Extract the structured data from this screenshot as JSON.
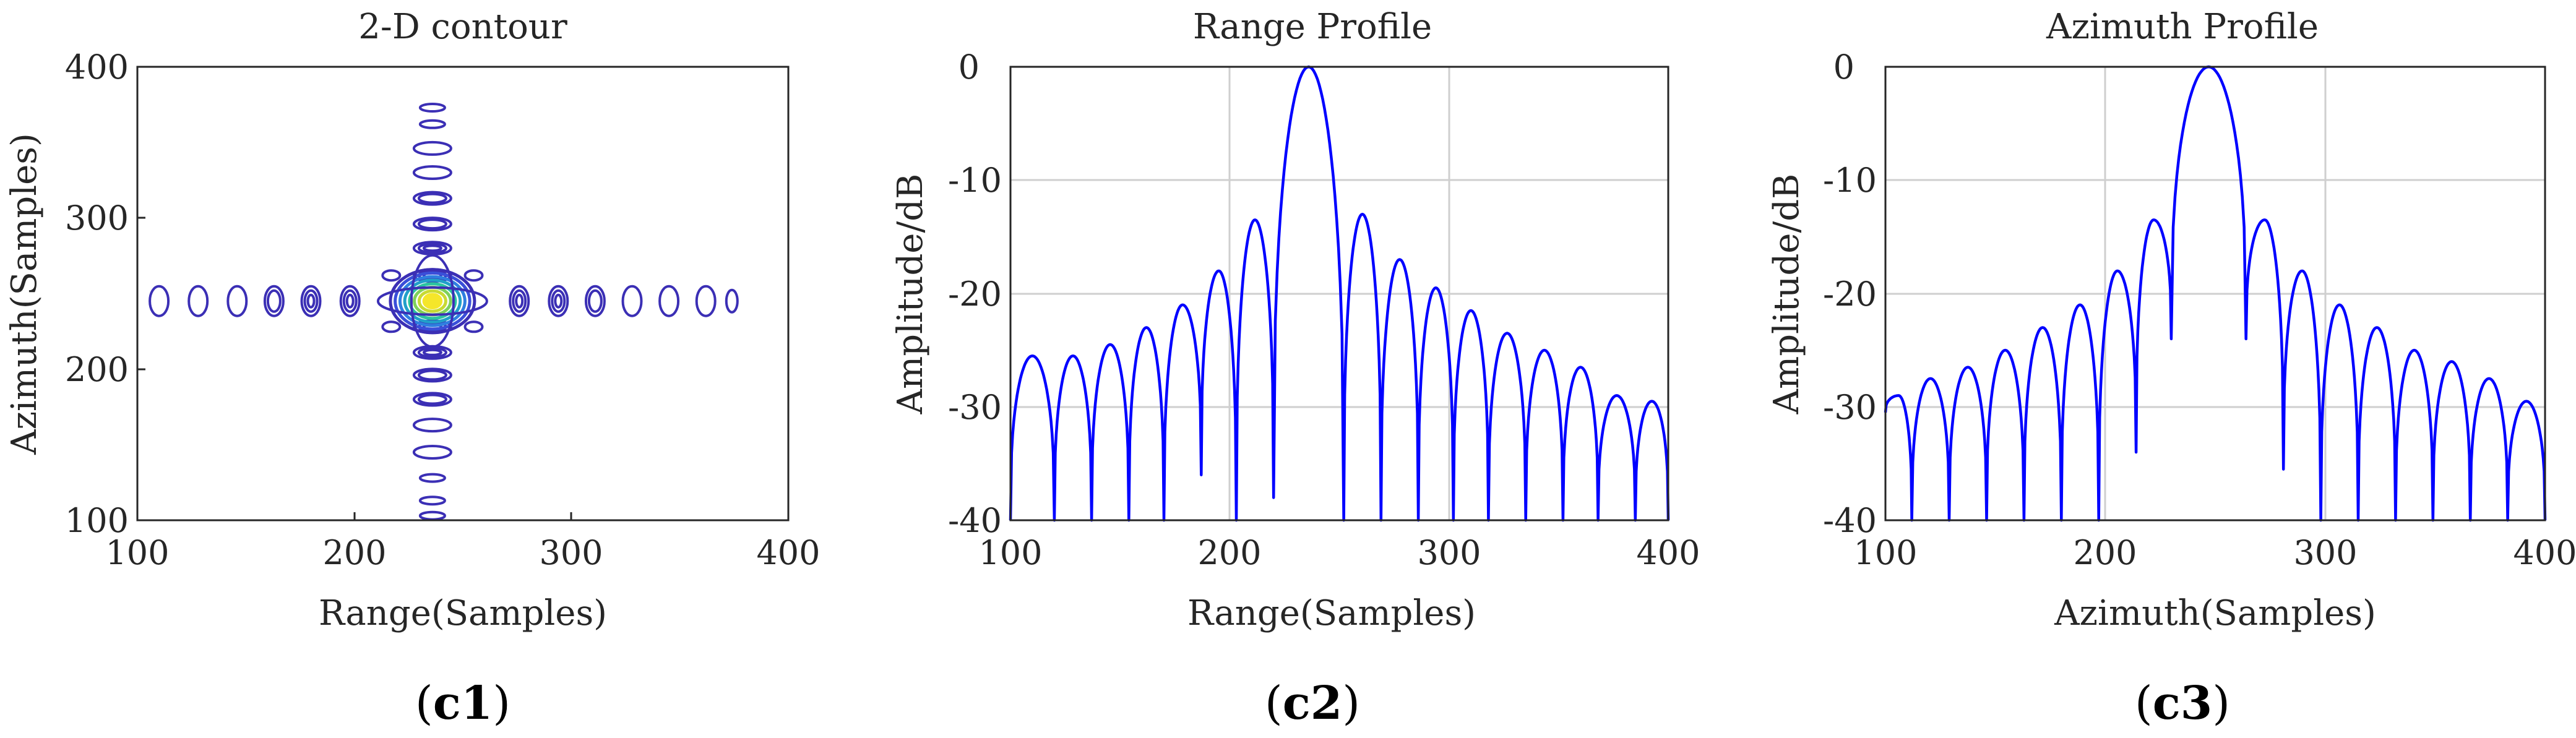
{
  "chart_data": [
    {
      "type": "contour",
      "title": "2-D contour",
      "xlabel": "Range(Samples)",
      "ylabel": "Azimuth(Samples)",
      "xlim": [
        100,
        400
      ],
      "ylim": [
        100,
        400
      ],
      "xticks": [
        "100",
        "200",
        "300",
        "400"
      ],
      "yticks": [
        "100",
        "200",
        "300",
        "400"
      ],
      "grid": false,
      "center": [
        236,
        245
      ],
      "colors": {
        "outer": "#3b2fb5",
        "inner": "#f5e62a",
        "mid": "#21a0c9"
      },
      "range_lobes_x": [
        110,
        128,
        146,
        163,
        180,
        198,
        276,
        294,
        311,
        328,
        345,
        362,
        374
      ],
      "azimuth_lobes_y": [
        103,
        113,
        128,
        145,
        163,
        180,
        196,
        211,
        228,
        262,
        280,
        296,
        313,
        330,
        346,
        362,
        373
      ],
      "panel_label": {
        "open": "(",
        "id": "c1",
        "close": ")"
      }
    },
    {
      "type": "line",
      "title": "Range Profile",
      "xlabel": "Range(Samples)",
      "ylabel": "Amplitude/dB",
      "xlim": [
        100,
        400
      ],
      "ylim": [
        -40,
        0
      ],
      "xticks": [
        "100",
        "200",
        "300",
        "400"
      ],
      "yticks": [
        "0",
        "-10",
        "-20",
        "-30",
        "-40"
      ],
      "grid": true,
      "color": "#0000ff",
      "mainlobe": {
        "x": 236,
        "half_width": 16
      },
      "nulls": [
        100,
        120,
        137,
        154,
        170,
        187,
        203,
        220,
        252,
        269,
        286,
        302,
        318,
        335,
        352,
        368,
        385,
        400
      ],
      "lobe_peaks": [
        -25.5,
        -25.5,
        -24.5,
        -23,
        -21,
        -18,
        -13.5,
        -13,
        -17,
        -19.5,
        -21.5,
        -23.5,
        -25,
        -26.5,
        -29,
        -29.5
      ],
      "null_depths": [
        -40,
        -40,
        -40,
        -40,
        -40,
        -36,
        -40,
        -38,
        -40,
        -40,
        -40,
        -40,
        -40,
        -40,
        -40,
        -40,
        -40,
        -40
      ],
      "panel_label": {
        "open": "(",
        "id": "c2",
        "close": ")"
      }
    },
    {
      "type": "line",
      "title": "Azimuth Profile",
      "xlabel": "Azimuth(Samples)",
      "ylabel": "Amplitude/dB",
      "xlim": [
        100,
        400
      ],
      "ylim": [
        -40,
        0
      ],
      "xticks": [
        "100",
        "200",
        "300",
        "400"
      ],
      "yticks": [
        "0",
        "-10",
        "-20",
        "-30",
        "-40"
      ],
      "grid": true,
      "color": "#0000ff",
      "mainlobe": {
        "x": 247,
        "half_width": 17
      },
      "nulls": [
        100,
        112,
        129,
        146,
        163,
        180,
        197,
        214,
        230,
        264,
        281,
        298,
        315,
        332,
        349,
        366,
        383,
        400
      ],
      "lobe_peaks": [
        -29,
        -27.5,
        -26.5,
        -25,
        -23,
        -21,
        -18,
        -13.5,
        -13.5,
        -18,
        -21,
        -23,
        -25,
        -26,
        -27.5,
        -29.5
      ],
      "null_depths": [
        -30.5,
        -40,
        -40,
        -40,
        -40,
        -40,
        -40,
        -34,
        -24,
        -24,
        -35.5,
        -40,
        -40,
        -40,
        -40,
        -40,
        -40,
        -40
      ],
      "panel_label": {
        "open": "(",
        "id": "c3",
        "close": ")"
      }
    }
  ]
}
